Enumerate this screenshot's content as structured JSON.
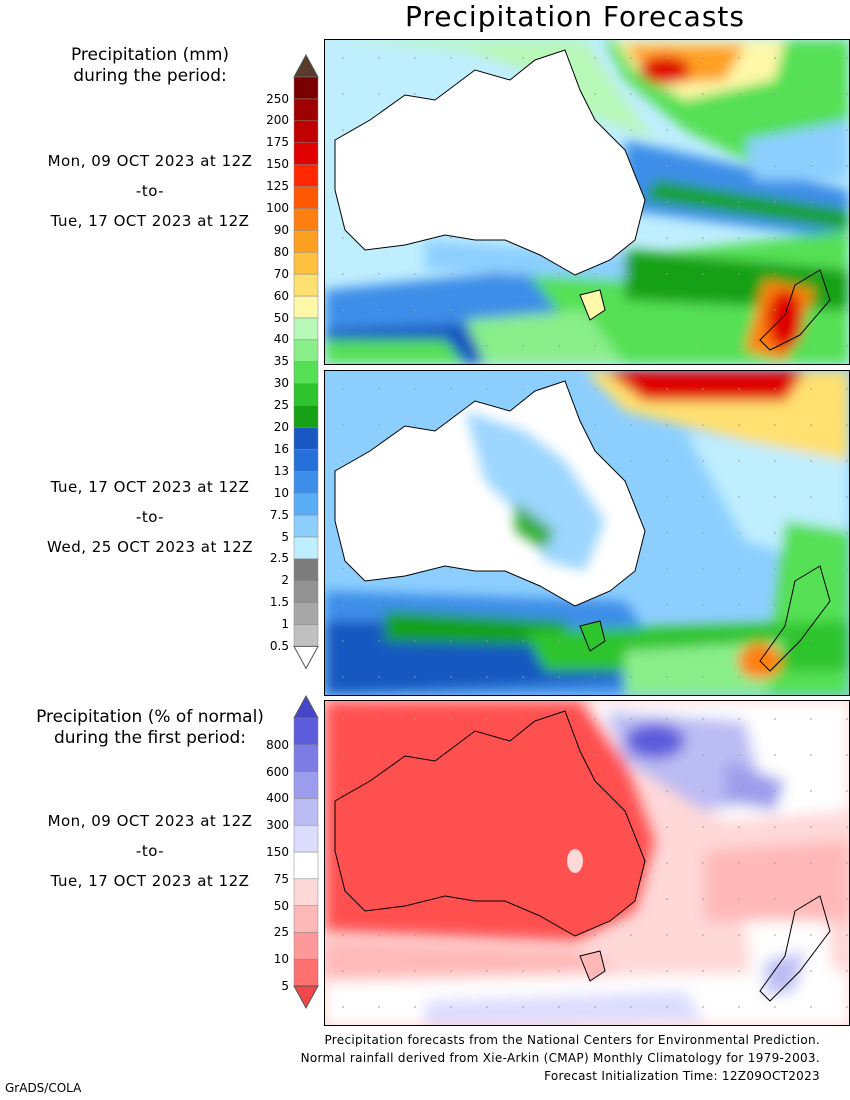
{
  "title": "Precipitation Forecasts",
  "amount_section": {
    "heading_line1": "Precipitation (mm)",
    "heading_line2": "during the period:",
    "period1": {
      "start": "Mon, 09 OCT 2023 at 12Z",
      "to": "-to-",
      "end": "Tue, 17 OCT 2023 at 12Z"
    },
    "period2": {
      "start": "Tue, 17 OCT 2023 at 12Z",
      "to": "-to-",
      "end": "Wed, 25 OCT 2023 at 12Z"
    },
    "legend": {
      "levels": [
        "0.5",
        "1",
        "1.5",
        "2",
        "2.5",
        "5",
        "7.5",
        "10",
        "13",
        "16",
        "20",
        "25",
        "30",
        "35",
        "40",
        "50",
        "60",
        "70",
        "80",
        "90",
        "100",
        "125",
        "150",
        "175",
        "200",
        "250"
      ],
      "colors": [
        "#c0c0c0",
        "#a8a8a8",
        "#929292",
        "#7c7c7c",
        "#bfeeff",
        "#8ccfff",
        "#5aaef5",
        "#3d8ee8",
        "#2470d8",
        "#1858c0",
        "#15a015",
        "#2dc42d",
        "#55e055",
        "#8aee8a",
        "#b8f8b8",
        "#fff8a8",
        "#ffe070",
        "#ffc040",
        "#ffa020",
        "#ff8010",
        "#ff5800",
        "#ff2800",
        "#e00000",
        "#c00000",
        "#a00000",
        "#7a0000"
      ],
      "under_color": "#ffffff",
      "over_color": "#5a3a2a"
    }
  },
  "percent_section": {
    "heading_line1": "Precipitation (% of normal)",
    "heading_line2": "during the first period:",
    "period": {
      "start": "Mon, 09 OCT 2023 at 12Z",
      "to": "-to-",
      "end": "Tue, 17 OCT 2023 at 12Z"
    },
    "legend": {
      "levels": [
        "5",
        "10",
        "25",
        "50",
        "75",
        "150",
        "300",
        "400",
        "600",
        "800"
      ],
      "colors": [
        "#ff7070",
        "#ff9898",
        "#ffb8b8",
        "#ffd8d8",
        "#ffffff",
        "#dcdcff",
        "#bcbcf4",
        "#9c9cec",
        "#7c7ce4",
        "#5c5cdc"
      ],
      "under_color": "#f04848",
      "over_color": "#4646cc"
    }
  },
  "footer": {
    "line1": "Precipitation forecasts from the National Centers for Environmental Prediction.",
    "line2": "Normal rainfall derived from Xie-Arkin (CMAP) Monthly Climatology for 1979-2003.",
    "line3": "Forecast Initialization Time: 12Z09OCT2023"
  },
  "credit": "GrADS/COLA"
}
